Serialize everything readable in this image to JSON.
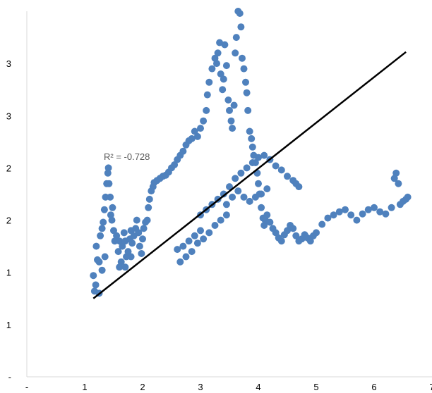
{
  "chart_data": {
    "type": "scatter",
    "title": "",
    "xlabel": "",
    "ylabel": "",
    "xlim": [
      0,
      7
    ],
    "ylim": [
      0,
      3.5
    ],
    "x_tick_labels": [
      "-",
      "1",
      "2",
      "3",
      "4",
      "5",
      "6",
      "7"
    ],
    "y_tick_labels": [
      "-",
      "1",
      "1",
      "2",
      "2",
      "3",
      "3"
    ],
    "grid": false,
    "legend": "none",
    "colors": {
      "points": "#4f81bd",
      "trendline": "#000000",
      "axis": "#d9d9d9"
    },
    "annotation": "R² = -0.728",
    "trendline": {
      "x": [
        1.15,
        6.55
      ],
      "y": [
        0.75,
        3.11
      ]
    },
    "series": [
      {
        "points": [
          [
            1.15,
            0.97
          ],
          [
            1.17,
            0.82
          ],
          [
            1.19,
            0.88
          ],
          [
            1.2,
            1.25
          ],
          [
            1.22,
            1.12
          ],
          [
            1.25,
            0.8
          ],
          [
            1.27,
            1.35
          ],
          [
            1.3,
            1.42
          ],
          [
            1.32,
            1.48
          ],
          [
            1.34,
            1.6
          ],
          [
            1.36,
            1.72
          ],
          [
            1.38,
            1.85
          ],
          [
            1.4,
            1.95
          ],
          [
            1.41,
            2.0
          ],
          [
            1.42,
            1.85
          ],
          [
            1.44,
            1.72
          ],
          [
            1.45,
            1.55
          ],
          [
            1.47,
            1.5
          ],
          [
            1.48,
            1.62
          ],
          [
            1.5,
            1.4
          ],
          [
            1.52,
            1.3
          ],
          [
            1.55,
            1.35
          ],
          [
            1.58,
            1.2
          ],
          [
            1.6,
            1.3
          ],
          [
            1.63,
            1.1
          ],
          [
            1.65,
            1.25
          ],
          [
            1.68,
            1.38
          ],
          [
            1.7,
            1.3
          ],
          [
            1.72,
            1.15
          ],
          [
            1.75,
            1.2
          ],
          [
            1.78,
            1.32
          ],
          [
            1.8,
            1.4
          ],
          [
            1.82,
            1.28
          ],
          [
            1.85,
            1.35
          ],
          [
            1.88,
            1.42
          ],
          [
            1.9,
            1.5
          ],
          [
            1.93,
            1.38
          ],
          [
            1.95,
            1.25
          ],
          [
            1.98,
            1.18
          ],
          [
            2.0,
            1.32
          ],
          [
            2.02,
            1.42
          ],
          [
            2.05,
            1.48
          ],
          [
            2.08,
            1.5
          ],
          [
            2.1,
            1.62
          ],
          [
            2.12,
            1.7
          ],
          [
            2.15,
            1.78
          ],
          [
            2.18,
            1.82
          ],
          [
            2.2,
            1.86
          ],
          [
            2.25,
            1.88
          ],
          [
            2.3,
            1.9
          ],
          [
            2.35,
            1.92
          ],
          [
            2.4,
            1.93
          ],
          [
            2.45,
            1.96
          ],
          [
            2.5,
            2.0
          ],
          [
            2.55,
            2.03
          ],
          [
            2.6,
            2.08
          ],
          [
            2.65,
            2.12
          ],
          [
            2.7,
            2.16
          ],
          [
            2.75,
            2.22
          ],
          [
            2.8,
            2.26
          ],
          [
            2.85,
            2.28
          ],
          [
            2.9,
            2.35
          ],
          [
            2.95,
            2.3
          ],
          [
            3.0,
            2.38
          ],
          [
            3.05,
            2.45
          ],
          [
            3.1,
            2.55
          ],
          [
            3.12,
            2.7
          ],
          [
            3.15,
            2.82
          ],
          [
            3.2,
            2.95
          ],
          [
            3.25,
            3.05
          ],
          [
            3.28,
            3.0
          ],
          [
            3.3,
            3.1
          ],
          [
            3.33,
            3.2
          ],
          [
            3.35,
            2.9
          ],
          [
            3.38,
            2.75
          ],
          [
            3.4,
            2.85
          ],
          [
            3.42,
            3.18
          ],
          [
            3.45,
            2.98
          ],
          [
            3.48,
            2.65
          ],
          [
            3.5,
            2.55
          ],
          [
            3.53,
            2.45
          ],
          [
            3.55,
            2.38
          ],
          [
            3.58,
            2.6
          ],
          [
            3.6,
            3.1
          ],
          [
            3.62,
            3.25
          ],
          [
            3.65,
            3.5
          ],
          [
            3.68,
            3.48
          ],
          [
            3.7,
            3.35
          ],
          [
            3.72,
            3.05
          ],
          [
            3.75,
            2.95
          ],
          [
            3.78,
            2.82
          ],
          [
            3.8,
            2.72
          ],
          [
            3.82,
            2.55
          ],
          [
            3.85,
            2.35
          ],
          [
            3.88,
            2.28
          ],
          [
            3.9,
            2.2
          ],
          [
            3.92,
            2.12
          ],
          [
            3.95,
            2.05
          ],
          [
            3.98,
            1.95
          ],
          [
            4.0,
            1.85
          ],
          [
            4.02,
            1.75
          ],
          [
            4.05,
            1.62
          ],
          [
            4.08,
            1.52
          ],
          [
            4.1,
            1.45
          ],
          [
            4.12,
            1.5
          ],
          [
            4.15,
            1.55
          ],
          [
            4.2,
            1.48
          ],
          [
            4.25,
            1.42
          ],
          [
            4.3,
            1.38
          ],
          [
            4.35,
            1.33
          ],
          [
            4.4,
            1.3
          ],
          [
            4.45,
            1.36
          ],
          [
            4.5,
            1.4
          ],
          [
            4.55,
            1.45
          ],
          [
            4.6,
            1.42
          ],
          [
            4.65,
            1.35
          ],
          [
            4.7,
            1.3
          ],
          [
            4.75,
            1.32
          ],
          [
            4.8,
            1.36
          ],
          [
            4.85,
            1.33
          ],
          [
            4.9,
            1.3
          ],
          [
            4.95,
            1.35
          ],
          [
            5.0,
            1.38
          ],
          [
            5.1,
            1.46
          ],
          [
            5.2,
            1.52
          ],
          [
            5.3,
            1.55
          ],
          [
            5.4,
            1.58
          ],
          [
            5.5,
            1.6
          ],
          [
            5.6,
            1.55
          ],
          [
            5.7,
            1.5
          ],
          [
            5.8,
            1.56
          ],
          [
            5.9,
            1.6
          ],
          [
            6.0,
            1.62
          ],
          [
            6.1,
            1.58
          ],
          [
            6.2,
            1.56
          ],
          [
            6.3,
            1.62
          ],
          [
            6.35,
            1.9
          ],
          [
            6.38,
            1.95
          ],
          [
            6.42,
            1.85
          ],
          [
            6.45,
            1.65
          ],
          [
            6.5,
            1.68
          ],
          [
            6.55,
            1.7
          ],
          [
            6.58,
            1.72
          ],
          [
            3.0,
            1.55
          ],
          [
            3.1,
            1.6
          ],
          [
            3.2,
            1.65
          ],
          [
            3.3,
            1.7
          ],
          [
            3.4,
            1.75
          ],
          [
            3.5,
            1.82
          ],
          [
            3.6,
            1.9
          ],
          [
            3.7,
            1.95
          ],
          [
            3.8,
            2.0
          ],
          [
            3.9,
            2.05
          ],
          [
            4.0,
            2.1
          ],
          [
            4.1,
            2.12
          ],
          [
            4.2,
            2.08
          ],
          [
            4.3,
            2.02
          ],
          [
            4.4,
            1.98
          ],
          [
            4.5,
            1.92
          ],
          [
            4.6,
            1.88
          ],
          [
            4.65,
            1.85
          ],
          [
            4.7,
            1.82
          ],
          [
            3.45,
            1.65
          ],
          [
            3.55,
            1.72
          ],
          [
            3.65,
            1.78
          ],
          [
            3.75,
            1.72
          ],
          [
            3.85,
            1.68
          ],
          [
            3.95,
            1.72
          ],
          [
            4.05,
            1.75
          ],
          [
            4.15,
            1.8
          ],
          [
            2.6,
            1.22
          ],
          [
            2.7,
            1.25
          ],
          [
            2.8,
            1.3
          ],
          [
            2.9,
            1.35
          ],
          [
            3.0,
            1.4
          ],
          [
            2.65,
            1.1
          ],
          [
            2.75,
            1.15
          ],
          [
            2.85,
            1.2
          ],
          [
            2.95,
            1.28
          ],
          [
            3.05,
            1.32
          ],
          [
            3.15,
            1.38
          ],
          [
            3.25,
            1.45
          ],
          [
            3.35,
            1.5
          ],
          [
            3.45,
            1.55
          ],
          [
            1.6,
            1.05
          ],
          [
            1.7,
            1.05
          ],
          [
            1.8,
            1.15
          ],
          [
            1.25,
            1.1
          ],
          [
            1.3,
            1.02
          ],
          [
            1.35,
            1.15
          ]
        ]
      }
    ]
  }
}
